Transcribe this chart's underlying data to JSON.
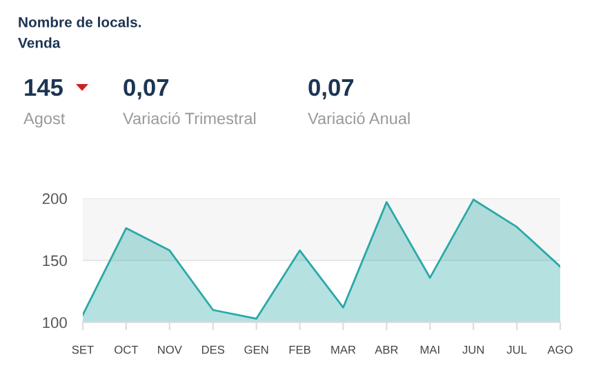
{
  "chart_data": {
    "type": "area",
    "title": "Nombre de locals.",
    "subtitle": "Venda",
    "annotations": [
      "145",
      "Agost",
      "0,07",
      "Variació Trimestral",
      "0,07",
      "Variació Anual"
    ],
    "categories": [
      "SET",
      "OCT",
      "NOV",
      "DES",
      "GEN",
      "FEB",
      "MAR",
      "ABR",
      "MAI",
      "JUN",
      "JUL",
      "AGO"
    ],
    "series": [
      {
        "color": "#2aa8a8",
        "values": [
          106,
          176,
          158,
          110,
          103,
          158,
          112,
          197,
          136,
          199,
          177,
          145
        ]
      }
    ],
    "ylim": [
      100,
      200
    ],
    "yticks": [
      100,
      150,
      200
    ],
    "grid": "y",
    "bands": [
      {
        "axis": "y",
        "from": 150,
        "to": 200,
        "color": "#f6f6f6"
      }
    ]
  }
}
